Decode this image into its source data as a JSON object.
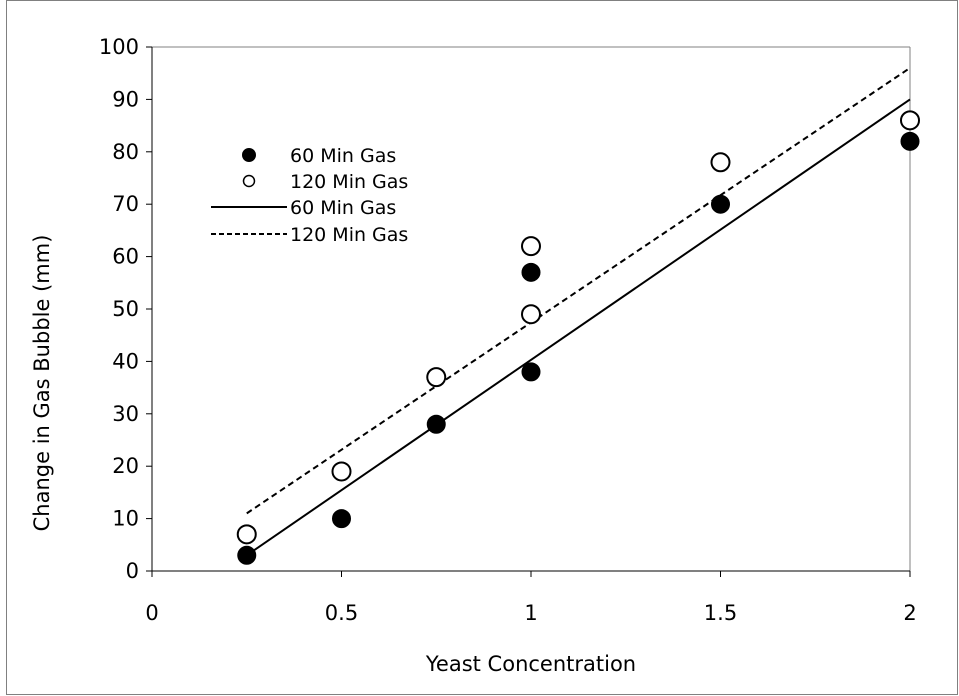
{
  "chart_data": {
    "type": "scatter",
    "title": "",
    "xlabel": "Yeast Concentration",
    "ylabel": "Change in Gas Bubble (mm)",
    "xlim": [
      0,
      2
    ],
    "ylim": [
      0,
      100
    ],
    "x_ticks": [
      0,
      0.5,
      1,
      1.5,
      2
    ],
    "x_tick_labels": [
      "0",
      "0.5",
      "1",
      "1.5",
      "2"
    ],
    "y_ticks": [
      0,
      10,
      20,
      30,
      40,
      50,
      60,
      70,
      80,
      90,
      100
    ],
    "y_tick_labels": [
      "0",
      "10",
      "20",
      "30",
      "40",
      "50",
      "60",
      "70",
      "80",
      "90",
      "100"
    ],
    "grid": false,
    "legend_position": "top-left",
    "series": [
      {
        "name": "60 Min Gas",
        "kind": "points",
        "marker": "filled-circle",
        "x": [
          0.25,
          0.5,
          0.75,
          1,
          1,
          1.5,
          2
        ],
        "y": [
          3,
          10,
          28,
          38,
          57,
          70,
          82
        ]
      },
      {
        "name": "120 Min Gas",
        "kind": "points",
        "marker": "open-circle",
        "x": [
          0.25,
          0.5,
          0.75,
          1,
          1,
          1.5,
          2
        ],
        "y": [
          7,
          19,
          37,
          49,
          62,
          78,
          86
        ]
      },
      {
        "name": "60 Min Gas",
        "kind": "trendline",
        "line_style": "solid",
        "x": [
          0.25,
          2
        ],
        "y": [
          3,
          90
        ]
      },
      {
        "name": "120 Min Gas",
        "kind": "trendline",
        "line_style": "dashed",
        "x": [
          0.25,
          2
        ],
        "y": [
          11,
          96
        ]
      }
    ]
  },
  "colors": {
    "marker_fill": "#000000",
    "marker_open_fill": "#ffffff",
    "line": "#000000",
    "frame": "#808080"
  }
}
